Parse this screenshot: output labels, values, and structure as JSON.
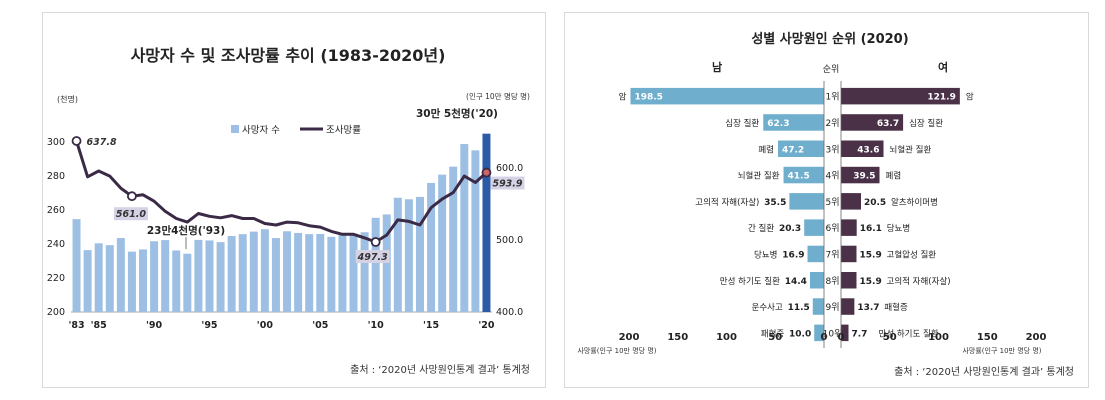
{
  "chart_data": [
    {
      "type": "bar",
      "title": "사망자 수 및 조사망률 추이 (1983-2020년)",
      "ylabel_left": "(천명)",
      "ylabel_right": "(인구 10만 명당 명)",
      "source": "출처 : ‘2020년 사망원인통계 결과’ 통계청",
      "legend": [
        "사망자 수",
        "조사망률"
      ],
      "legend_position": "top-center",
      "x": [
        1983,
        1984,
        1985,
        1986,
        1987,
        1988,
        1989,
        1990,
        1991,
        1992,
        1993,
        1994,
        1995,
        1996,
        1997,
        1998,
        1999,
        2000,
        2001,
        2002,
        2003,
        2004,
        2005,
        2006,
        2007,
        2008,
        2009,
        2010,
        2011,
        2012,
        2013,
        2014,
        2015,
        2016,
        2017,
        2018,
        2019,
        2020
      ],
      "x_tick_labels": [
        "'83",
        "'85",
        "'90",
        "'95",
        "'00",
        "'05",
        "'10",
        "'15",
        "'20"
      ],
      "x_tick_years": [
        1983,
        1985,
        1990,
        1995,
        2000,
        2005,
        2010,
        2015,
        2020
      ],
      "ylim_left": [
        200,
        310
      ],
      "yticks_left": [
        "200",
        "220",
        "240",
        "260",
        "280",
        "300"
      ],
      "ylim_right": [
        400,
        660
      ],
      "yticks_right": [
        "400.0",
        "500.0",
        "600.0"
      ],
      "series": [
        {
          "name": "사망자 수",
          "axis": "left",
          "values": [
            254.6,
            236.4,
            240.4,
            239.3,
            243.5,
            235.5,
            236.8,
            241.6,
            242.3,
            236.2,
            234.3,
            242.4,
            242.1,
            241.1,
            244.7,
            245.8,
            247.3,
            248.7,
            243.5,
            247.5,
            246.5,
            245.8,
            245.9,
            244.2,
            245.5,
            246.1,
            246.9,
            255.4,
            257.4,
            267.2,
            266.3,
            267.7,
            275.9,
            280.8,
            285.5,
            298.8,
            295.1,
            304.9
          ],
          "colors": {
            "default": "#9dbfe3",
            "last": "#2b5aa6"
          }
        },
        {
          "name": "조사망률",
          "axis": "right",
          "values": [
            637.8,
            588.0,
            596.0,
            589.0,
            572.0,
            561.0,
            563.0,
            554.0,
            540.0,
            530.0,
            525.0,
            537.0,
            533.0,
            531.0,
            534.0,
            530.0,
            530.0,
            523.0,
            521.0,
            525.0,
            524.0,
            520.0,
            518.0,
            512.0,
            508.0,
            508.0,
            503.0,
            497.3,
            507.0,
            528.0,
            526.0,
            521.0,
            545.0,
            557.0,
            566.0,
            589.0,
            580.0,
            593.9
          ],
          "color": "#3a2a46"
        }
      ],
      "annotations": {
        "first": "637.8",
        "y1988": "561.0",
        "min": "497.3",
        "last": "593.9",
        "peak_label": "30만 5천명('20)",
        "low_label": "23만4천명('93)"
      }
    },
    {
      "type": "bar",
      "title": "성별 사망원인 순위 (2020)",
      "left_header": "남",
      "center_header": "순위",
      "right_header": "여",
      "xticks": [
        "200",
        "150",
        "100",
        "50",
        "0"
      ],
      "axis_label": "사망률(인구 10만 명당 명)",
      "source": "출처 : ‘2020년 사망원인통계 결과’ 통계청",
      "xlim": [
        0,
        200
      ],
      "ranks": [
        "1위",
        "2위",
        "3위",
        "4위",
        "5위",
        "6위",
        "7위",
        "8위",
        "9위",
        "10위"
      ],
      "male": [
        {
          "cause": "암",
          "value": 198.5,
          "value_label": "198.5"
        },
        {
          "cause": "심장 질환",
          "value": 62.3,
          "value_label": "62.3"
        },
        {
          "cause": "폐렴",
          "value": 47.2,
          "value_label": "47.2"
        },
        {
          "cause": "뇌혈관 질환",
          "value": 41.5,
          "value_label": "41.5"
        },
        {
          "cause": "고의적 자해(자살)",
          "value": 35.5,
          "value_label": "35.5"
        },
        {
          "cause": "간 질환",
          "value": 20.3,
          "value_label": "20.3"
        },
        {
          "cause": "당뇨병",
          "value": 16.9,
          "value_label": "16.9"
        },
        {
          "cause": "만성 하기도 질환",
          "value": 14.4,
          "value_label": "14.4"
        },
        {
          "cause": "운수사고",
          "value": 11.5,
          "value_label": "11.5"
        },
        {
          "cause": "패혈증",
          "value": 10.0,
          "value_label": "10.0"
        }
      ],
      "female": [
        {
          "cause": "암",
          "value": 121.9,
          "value_label": "121.9"
        },
        {
          "cause": "심장 질환",
          "value": 63.7,
          "value_label": "63.7"
        },
        {
          "cause": "뇌혈관 질환",
          "value": 43.6,
          "value_label": "43.6"
        },
        {
          "cause": "폐렴",
          "value": 39.5,
          "value_label": "39.5"
        },
        {
          "cause": "알츠하이머병",
          "value": 20.5,
          "value_label": "20.5"
        },
        {
          "cause": "당뇨병",
          "value": 16.1,
          "value_label": "16.1"
        },
        {
          "cause": "고혈압성 질환",
          "value": 15.9,
          "value_label": "15.9"
        },
        {
          "cause": "고의적 자해(자살)",
          "value": 15.9,
          "value_label": "15.9"
        },
        {
          "cause": "패혈증",
          "value": 13.7,
          "value_label": "13.7"
        },
        {
          "cause": "만성 하기도 질환",
          "value": 7.7,
          "value_label": "7.7"
        }
      ],
      "colors": {
        "male": "#6faecd",
        "female": "#4a3148"
      }
    }
  ]
}
